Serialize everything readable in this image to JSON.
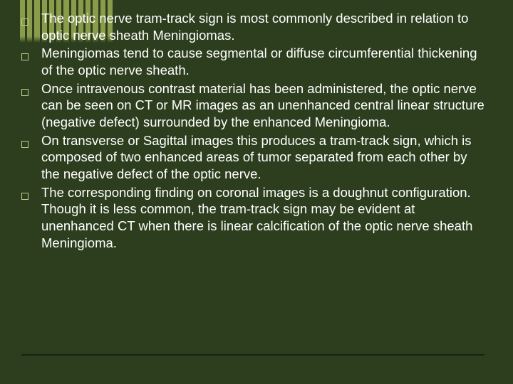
{
  "slide": {
    "background_color": "#2d3e1e",
    "text_color": "#ffffff",
    "bullet_border_color": "#c0cc8a",
    "stripe_color": "#8a9b4a",
    "font_size_pt": 14,
    "bullets": [
      {
        "text": "The optic nerve tram-track sign is most commonly described in relation to optic nerve sheath Meningiomas."
      },
      {
        "text": "Meningiomas tend to cause segmental or diffuse circumferential thickening of the optic nerve sheath."
      },
      {
        "text": "Once intravenous contrast material has been administered, the optic nerve can be seen on CT or MR images as an unenhanced central linear structure (negative defect) surrounded by the enhanced Meningioma."
      },
      {
        "text": "On transverse or Sagittal images this produces a tram-track sign, which is composed of two enhanced areas of tumor separated from each other by the negative defect of the optic nerve."
      },
      {
        "text": "The corresponding finding on coronal images is a doughnut configuration. Though it is less common, the tram-track sign may be evident at unenhanced CT when there is linear calcification of the optic nerve sheath Meningioma."
      }
    ]
  }
}
